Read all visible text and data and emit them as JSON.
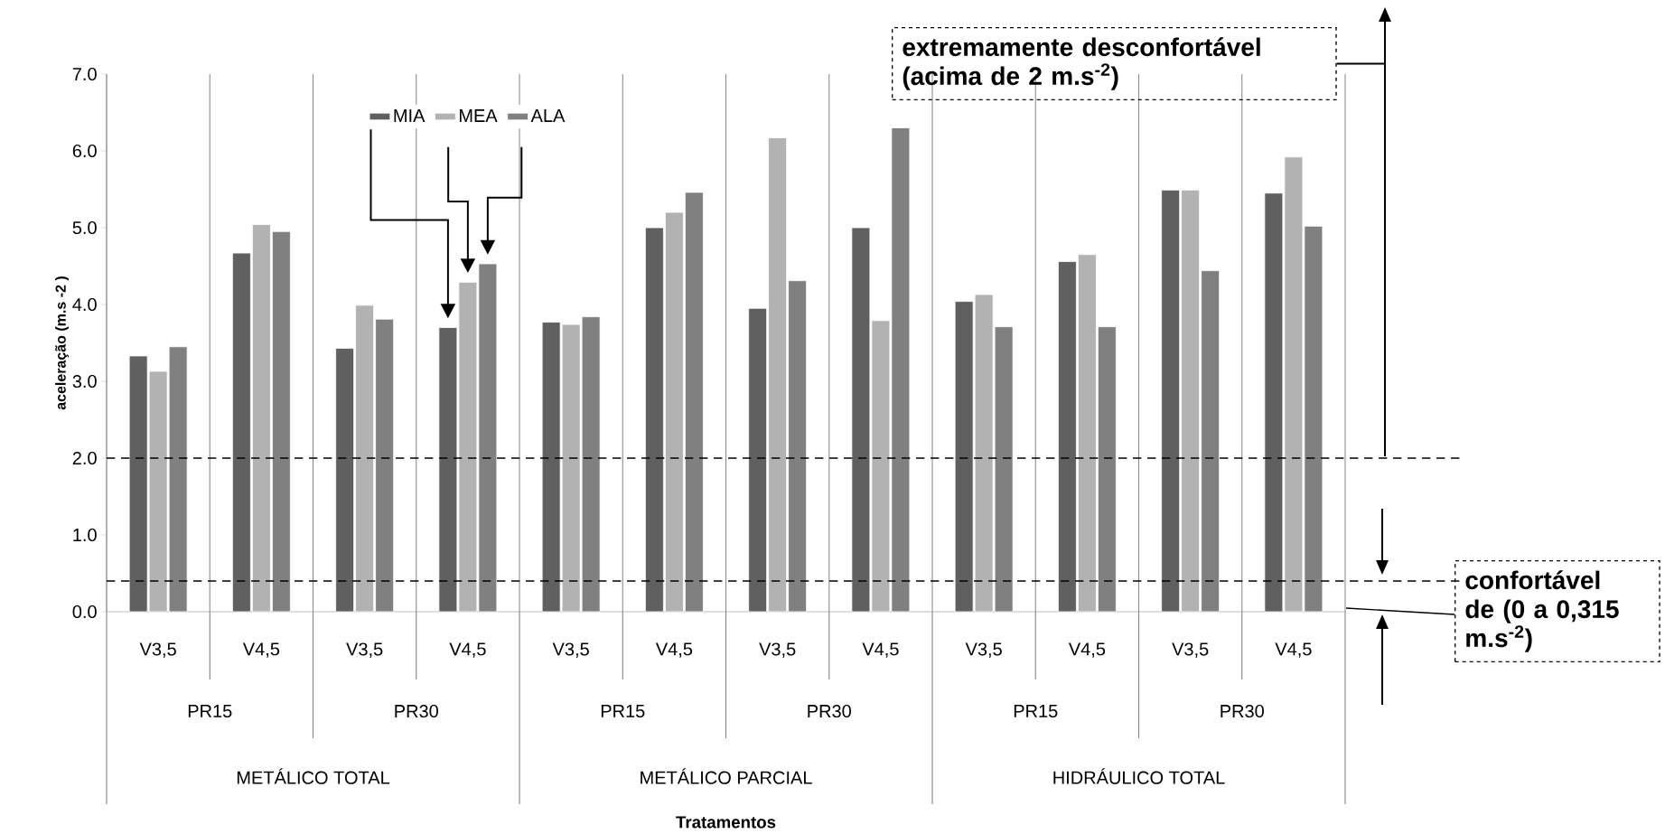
{
  "chart_data": {
    "type": "bar",
    "ylabel": "aceleração (m.s -2 )",
    "categories": [
      "V3,5",
      "V4,5",
      "V3,5",
      "V4,5",
      "V3,5",
      "V4,5",
      "V3,5",
      "V4,5",
      "V3,5",
      "V4,5",
      "V3,5",
      "V4,5"
    ],
    "series": [
      {
        "name": "MIA",
        "color": "#606060",
        "values": [
          3.33,
          4.67,
          3.43,
          3.7,
          3.77,
          5.0,
          3.95,
          5.0,
          4.04,
          4.56,
          5.49,
          5.45
        ]
      },
      {
        "name": "MEA",
        "color": "#b2b2b2",
        "values": [
          3.13,
          5.04,
          3.99,
          4.29,
          3.74,
          5.2,
          6.17,
          3.79,
          4.13,
          4.65,
          5.49,
          5.92
        ]
      },
      {
        "name": "ALA",
        "color": "#808080",
        "values": [
          3.45,
          4.95,
          3.81,
          4.53,
          3.84,
          5.46,
          4.31,
          6.3,
          3.71,
          3.71,
          4.44,
          5.02
        ]
      }
    ],
    "ylim": [
      0,
      7
    ],
    "yticks": [
      {
        "value": 0,
        "label": "0.0"
      },
      {
        "value": 1,
        "label": "1.0"
      },
      {
        "value": 2,
        "label": "2.0"
      },
      {
        "value": 3,
        "label": "3.0"
      },
      {
        "value": 4,
        "label": "4.0"
      },
      {
        "value": 5,
        "label": "5.0"
      },
      {
        "value": 6,
        "label": "6.0"
      },
      {
        "value": 7,
        "label": "7.0"
      }
    ],
    "grid": "x",
    "legend": "top",
    "ref_lines": [
      {
        "axis": "y",
        "value": 2,
        "color": "#000000",
        "line_style": "dashed"
      },
      {
        "axis": "y",
        "value": 0.4,
        "color": "#000000",
        "line_style": "dashed"
      }
    ],
    "annotations": [
      "PR15",
      "PR30",
      "PR15",
      "PR30",
      "PR15",
      "PR30",
      "METÁLICO TOTAL",
      "METÁLICO PARCIAL",
      "HIDRÁULICO TOTAL",
      "extremamente desconfortável (acima de 2 m.s$^{-2}$)",
      "confortável de (0 a 0,315 m.s$^{-2}$)",
      "Tratamentos"
    ]
  }
}
